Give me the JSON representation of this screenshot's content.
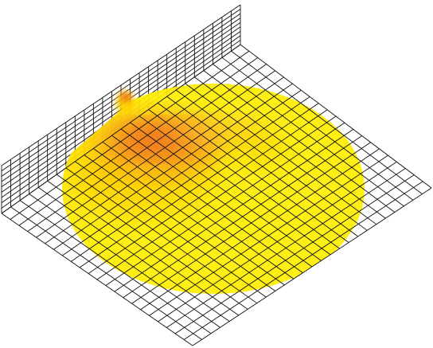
{
  "scene": {
    "grid_line_color": "#111111",
    "background_color": "#ffffff",
    "colors": {
      "low": "#ffee00",
      "mid": "#ffb020",
      "high": "#f07020",
      "peak": "#e03010"
    }
  }
}
